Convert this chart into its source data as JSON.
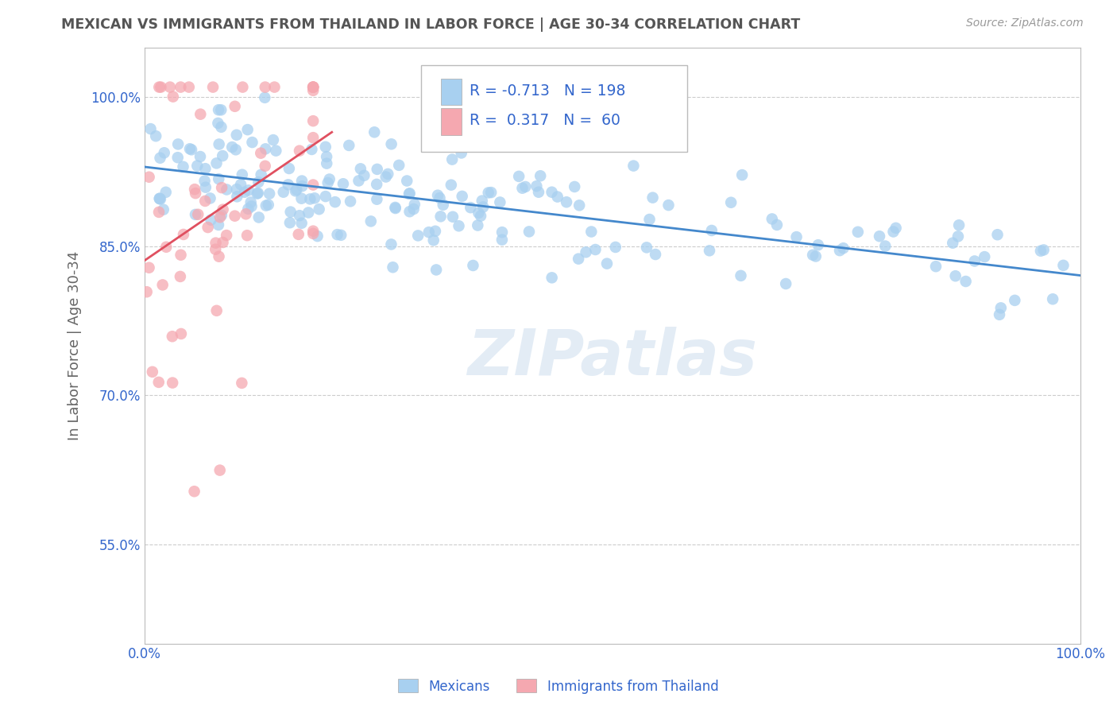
{
  "title": "MEXICAN VS IMMIGRANTS FROM THAILAND IN LABOR FORCE | AGE 30-34 CORRELATION CHART",
  "source": "Source: ZipAtlas.com",
  "ylabel": "In Labor Force | Age 30-34",
  "legend_label1": "Mexicans",
  "legend_label2": "Immigrants from Thailand",
  "R1": -0.713,
  "N1": 198,
  "R2": 0.317,
  "N2": 60,
  "blue_color": "#A8D0F0",
  "pink_color": "#F5A8B0",
  "blue_line_color": "#4488CC",
  "pink_line_color": "#E05060",
  "watermark": "ZIPatlas",
  "xlim": [
    0.0,
    1.0
  ],
  "ylim": [
    0.45,
    1.05
  ],
  "yticks": [
    0.55,
    0.7,
    0.85,
    1.0
  ],
  "ytick_labels": [
    "55.0%",
    "70.0%",
    "85.0%",
    "100.0%"
  ],
  "background_color": "#FFFFFF",
  "grid_color": "#CCCCCC",
  "title_color": "#555555",
  "axis_label_color": "#666666",
  "legend_text_color": "#3366CC",
  "seed_blue": 7,
  "seed_pink": 3
}
